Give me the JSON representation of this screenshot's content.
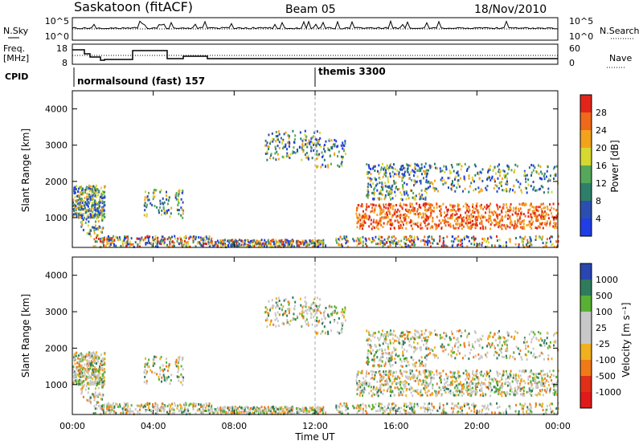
{
  "header": {
    "station": "Saskatoon (fitACF)",
    "beam": "Beam 05",
    "date": "18/Nov/2010"
  },
  "summary_panels": {
    "nsky_label": "N.Sky",
    "nsearch_label": "N.Search",
    "nsky_ticks": [
      "10^5",
      "10^0"
    ],
    "nsearch_ticks": [
      "10^5",
      "10^0"
    ],
    "freq_label_line1": "Freq.",
    "freq_label_line2": "[MHz]",
    "freq_ticks": [
      "18",
      "8"
    ],
    "nave_label": "Nave",
    "nave_ticks": [
      "60",
      "0"
    ],
    "cpid_label": "CPID",
    "cpid_segments": [
      {
        "text": "normalsound (fast) 157",
        "start_hour": 0
      },
      {
        "text": "themis 3300",
        "start_hour": 12
      }
    ]
  },
  "chart_data": [
    {
      "type": "heatmap",
      "title": "",
      "xlabel": "Time UT",
      "ylabel": "Slant Range [km]",
      "x_ticks": [
        "00:00",
        "04:00",
        "08:00",
        "12:00",
        "16:00",
        "20:00",
        "00:00"
      ],
      "y_ticks": [
        1000,
        2000,
        3000,
        4000
      ],
      "xlim_hours": [
        0,
        24
      ],
      "ylim_km": [
        180,
        4500
      ],
      "colorbar": {
        "label": "Power [dB]",
        "ticks": [
          4,
          8,
          12,
          16,
          20,
          24,
          28
        ],
        "colors": [
          "#1f3ee6",
          "#2b4fb0",
          "#2e7f6a",
          "#55a85a",
          "#d6d832",
          "#f3a21d",
          "#f0681a",
          "#e2251a"
        ]
      }
    },
    {
      "type": "heatmap",
      "title": "",
      "xlabel": "Time UT",
      "ylabel": "Slant Range [km]",
      "x_ticks": [
        "00:00",
        "04:00",
        "08:00",
        "12:00",
        "16:00",
        "20:00",
        "00:00"
      ],
      "y_ticks": [
        1000,
        2000,
        3000,
        4000
      ],
      "xlim_hours": [
        0,
        24
      ],
      "ylim_km": [
        180,
        4500
      ],
      "colorbar": {
        "label": "Velocity [m s⁻¹]",
        "ticks": [
          1000,
          500,
          100,
          25,
          -25,
          -100,
          -500,
          -1000
        ],
        "colors": [
          "#2a46b0",
          "#2f7b5e",
          "#58b035",
          "#c8c8c8",
          "#c8c8c8",
          "#f0b020",
          "#f07a18",
          "#e03018",
          "#e01a1a"
        ]
      }
    }
  ]
}
